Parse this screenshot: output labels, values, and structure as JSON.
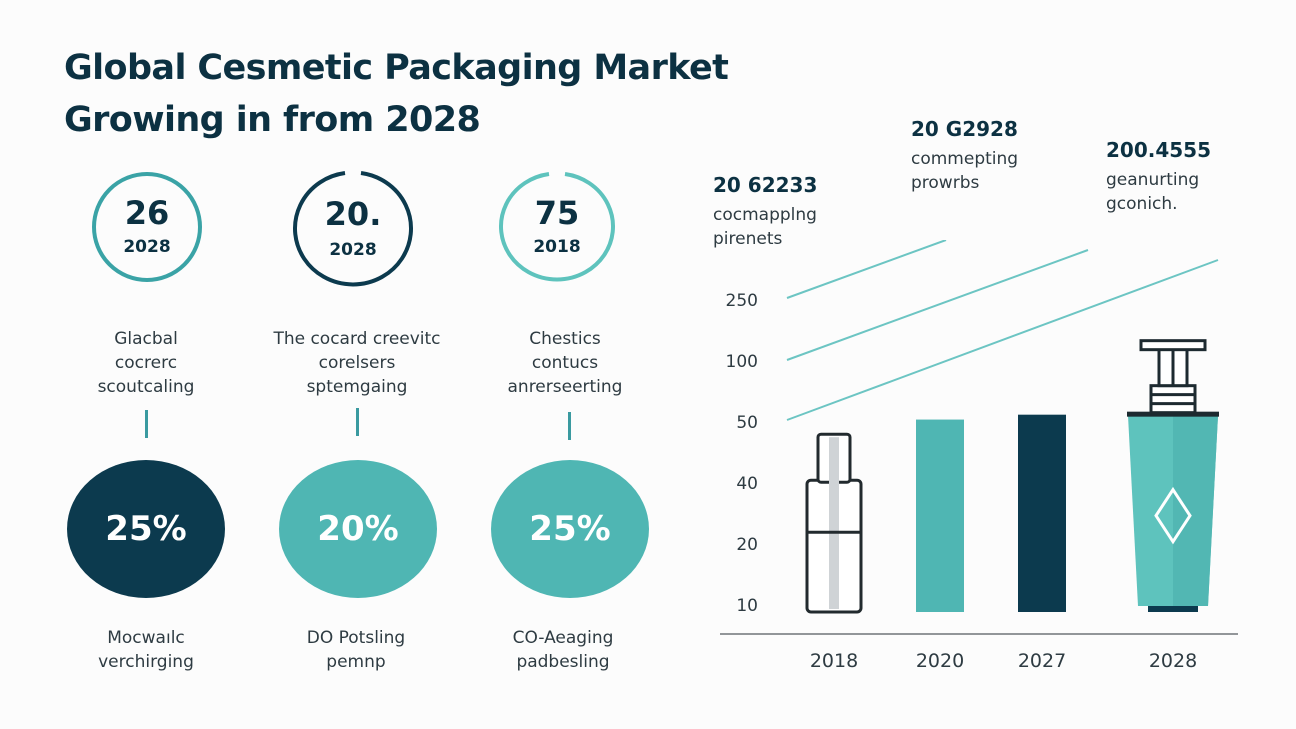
{
  "title": {
    "line1": "Global Cesmetic Packaging Market",
    "line2": "Growing in from 2028"
  },
  "colors": {
    "navy": "#0c3a4e",
    "teal": "#4fb6b3",
    "teal_light": "#5ec3bd",
    "text": "#0c3142",
    "gray": "#cfd3d6"
  },
  "rings": [
    {
      "value": "26",
      "year": "2028",
      "color": "#3aa3a6",
      "style": "full"
    },
    {
      "value": "20.",
      "year": "2028",
      "color": "#0c3a4e",
      "style": "gap-top"
    },
    {
      "value": "75",
      "year": "2018",
      "color": "#5ec3bd",
      "style": "gap-top"
    }
  ],
  "descriptions": [
    {
      "lines": [
        "Glacbal",
        "cocrerc",
        "scoutcaling"
      ]
    },
    {
      "lines": [
        "The cocard creevitc",
        "corelsers",
        "sptemgaing"
      ]
    },
    {
      "lines": [
        "Chestics",
        "contucs",
        "anrerseerting"
      ]
    }
  ],
  "discs": [
    {
      "value": "25%",
      "color": "#0c3a4e",
      "label": [
        "Mocwaılc",
        "verchirging"
      ]
    },
    {
      "value": "20%",
      "color": "#4fb6b3",
      "label": [
        "DO Potsling",
        "pemnp"
      ]
    },
    {
      "value": "25%",
      "color": "#4fb6b3",
      "label": [
        "CO-Aeaging",
        "padbesling"
      ]
    }
  ],
  "callouts": [
    {
      "number": "20 62233",
      "lines": [
        "cocmapplng",
        "pirenets"
      ]
    },
    {
      "number": "20 G2928",
      "lines": [
        "commepting",
        "prowrbs"
      ]
    },
    {
      "number": "200.4555",
      "lines": [
        "geanurting",
        "gconich."
      ]
    }
  ],
  "chart_data": {
    "type": "bar",
    "title": "",
    "xlabel": "",
    "ylabel": "",
    "categories": [
      "2018",
      "2020",
      "2027",
      "2028"
    ],
    "y_ticks": [
      "250",
      "100",
      "50",
      "40",
      "20",
      "10"
    ],
    "values": [
      48,
      52,
      56,
      150
    ],
    "bar_styles": [
      "bottle-outline",
      "teal",
      "navy",
      "pump-bottle"
    ],
    "bar_colors": [
      "#ffffff",
      "#4fb6b3",
      "#0c3a4e",
      "#5ec3bd"
    ],
    "trend_lines": 3,
    "trend_color": "#6cc5c3",
    "grid": false,
    "legend": "none"
  }
}
